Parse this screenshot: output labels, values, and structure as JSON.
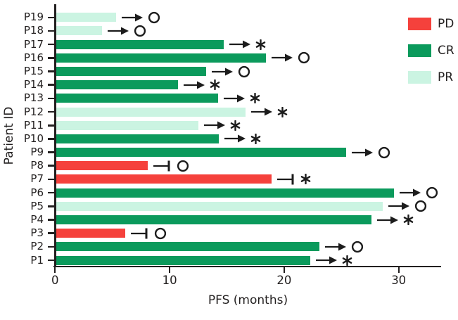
{
  "chart_data": {
    "type": "bar",
    "orientation": "horizontal",
    "title": "",
    "xlabel": "PFS (months)",
    "ylabel": "Patient ID",
    "xlim": [
      0,
      33.7
    ],
    "x_ticks": [
      "0",
      "10",
      "20",
      "30"
    ],
    "x_tick_values": [
      0,
      10,
      20,
      30
    ],
    "grid": false,
    "legend": {
      "position": "top-right",
      "entries": [
        {
          "label": "PD",
          "color": "#F5413C"
        },
        {
          "label": "CR",
          "color": "#0B9A5C"
        },
        {
          "label": "PR",
          "color": "#CBF4E2"
        }
      ]
    },
    "status_colors": {
      "PD": "#F5413C",
      "CR": "#0B9A5C",
      "PR": "#CBF4E2"
    },
    "marker_color": "#1c1c1c",
    "patients": [
      {
        "id": "P19",
        "response": "PR",
        "pfs_months": 5.2,
        "end_marker": "arrow",
        "end_symbol": "circle"
      },
      {
        "id": "P18",
        "response": "PR",
        "pfs_months": 4.0,
        "end_marker": "arrow",
        "end_symbol": "circle"
      },
      {
        "id": "P17",
        "response": "CR",
        "pfs_months": 14.6,
        "end_marker": "arrow",
        "end_symbol": "asterisk"
      },
      {
        "id": "P16",
        "response": "CR",
        "pfs_months": 18.3,
        "end_marker": "arrow",
        "end_symbol": "circle"
      },
      {
        "id": "P15",
        "response": "CR",
        "pfs_months": 13.1,
        "end_marker": "arrow",
        "end_symbol": "circle"
      },
      {
        "id": "P14",
        "response": "CR",
        "pfs_months": 10.6,
        "end_marker": "arrow",
        "end_symbol": "asterisk"
      },
      {
        "id": "P13",
        "response": "CR",
        "pfs_months": 14.1,
        "end_marker": "arrow",
        "end_symbol": "asterisk"
      },
      {
        "id": "P12",
        "response": "PR",
        "pfs_months": 16.5,
        "end_marker": "arrow",
        "end_symbol": "asterisk"
      },
      {
        "id": "P11",
        "response": "PR",
        "pfs_months": 12.4,
        "end_marker": "arrow",
        "end_symbol": "asterisk"
      },
      {
        "id": "P10",
        "response": "CR",
        "pfs_months": 14.2,
        "end_marker": "arrow",
        "end_symbol": "asterisk"
      },
      {
        "id": "P9",
        "response": "CR",
        "pfs_months": 25.3,
        "end_marker": "arrow",
        "end_symbol": "circle"
      },
      {
        "id": "P8",
        "response": "PD",
        "pfs_months": 8.0,
        "end_marker": "tbar",
        "end_symbol": "circle"
      },
      {
        "id": "P7",
        "response": "PD",
        "pfs_months": 18.8,
        "end_marker": "tbar",
        "end_symbol": "asterisk"
      },
      {
        "id": "P6",
        "response": "CR",
        "pfs_months": 29.5,
        "end_marker": "arrow",
        "end_symbol": "circle"
      },
      {
        "id": "P5",
        "response": "PR",
        "pfs_months": 28.5,
        "end_marker": "arrow",
        "end_symbol": "circle"
      },
      {
        "id": "P4",
        "response": "CR",
        "pfs_months": 27.5,
        "end_marker": "arrow",
        "end_symbol": "asterisk"
      },
      {
        "id": "P3",
        "response": "PD",
        "pfs_months": 6.0,
        "end_marker": "tbar",
        "end_symbol": "circle"
      },
      {
        "id": "P2",
        "response": "CR",
        "pfs_months": 23.0,
        "end_marker": "arrow",
        "end_symbol": "circle"
      },
      {
        "id": "P1",
        "response": "CR",
        "pfs_months": 22.2,
        "end_marker": "arrow",
        "end_symbol": "asterisk"
      }
    ]
  }
}
